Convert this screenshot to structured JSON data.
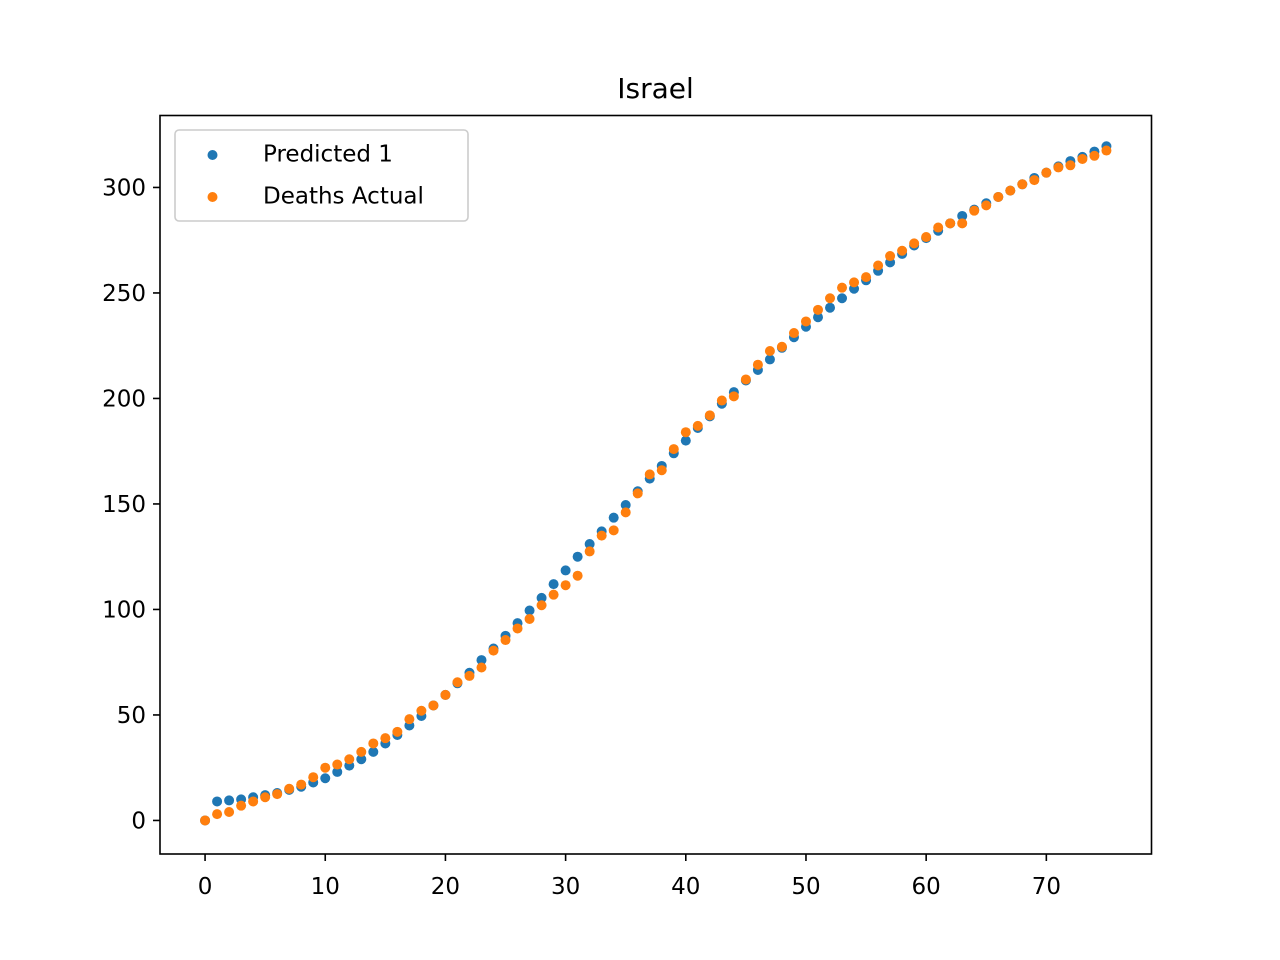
{
  "chart_data": {
    "type": "scatter",
    "title": "Israel",
    "xlabel": "",
    "ylabel": "",
    "xlim": [
      -3.75,
      78.75
    ],
    "ylim": [
      -15.9,
      334.1
    ],
    "xticks": [
      0,
      10,
      20,
      30,
      40,
      50,
      60,
      70
    ],
    "yticks": [
      0,
      50,
      100,
      150,
      200,
      250,
      300
    ],
    "grid": false,
    "legend_position": "upper-left",
    "series": [
      {
        "name": "Predicted 1",
        "color": "#1f77b4",
        "x": [
          0,
          1,
          2,
          3,
          4,
          5,
          6,
          7,
          8,
          9,
          10,
          11,
          12,
          13,
          14,
          15,
          16,
          17,
          18,
          19,
          20,
          21,
          22,
          23,
          24,
          25,
          26,
          27,
          28,
          29,
          30,
          31,
          32,
          33,
          34,
          35,
          36,
          37,
          38,
          39,
          40,
          41,
          42,
          43,
          44,
          45,
          46,
          47,
          48,
          49,
          50,
          51,
          52,
          53,
          54,
          55,
          56,
          57,
          58,
          59,
          60,
          61,
          62,
          63,
          64,
          65,
          66,
          67,
          68,
          69,
          70,
          71,
          72,
          73,
          74,
          75
        ],
        "y": [
          0,
          9,
          9.5,
          10,
          11,
          12,
          13,
          14.5,
          16,
          18,
          20,
          23,
          26,
          29,
          32.5,
          36.5,
          40.5,
          45,
          49.5,
          54.5,
          59.5,
          65,
          70,
          76,
          81.5,
          87.5,
          93.5,
          99.5,
          105.5,
          112,
          118.5,
          125,
          131,
          137,
          143.5,
          149.5,
          156,
          162,
          168,
          174,
          180,
          186,
          191.5,
          197.5,
          203,
          208.5,
          213.5,
          218.5,
          224,
          229,
          234,
          238.5,
          243,
          247.5,
          252,
          256,
          260.5,
          264.5,
          268.5,
          272.5,
          276,
          279.5,
          283,
          286.5,
          289.5,
          292.5,
          295.5,
          298.5,
          301.5,
          304.5,
          307,
          310,
          312.5,
          314.5,
          317,
          319.5
        ]
      },
      {
        "name": "Deaths Actual",
        "color": "#ff7f0e",
        "x": [
          0,
          1,
          2,
          3,
          4,
          5,
          6,
          7,
          8,
          9,
          10,
          11,
          12,
          13,
          14,
          15,
          16,
          17,
          18,
          19,
          20,
          21,
          22,
          23,
          24,
          25,
          26,
          27,
          28,
          29,
          30,
          31,
          32,
          33,
          34,
          35,
          36,
          37,
          38,
          39,
          40,
          41,
          42,
          43,
          44,
          45,
          46,
          47,
          48,
          49,
          50,
          51,
          52,
          53,
          54,
          55,
          56,
          57,
          58,
          59,
          60,
          61,
          62,
          63,
          64,
          65,
          66,
          67,
          68,
          69,
          70,
          71,
          72,
          73,
          74,
          75
        ],
        "y": [
          0,
          3,
          4,
          7,
          9,
          11,
          12.5,
          15,
          17,
          20.5,
          25,
          26.5,
          29,
          32.5,
          36.5,
          39,
          42,
          48,
          52,
          54.5,
          59.5,
          65.5,
          68.5,
          72.5,
          80.5,
          85.5,
          91,
          95.5,
          102,
          107,
          111.5,
          116,
          127.5,
          135,
          137.5,
          146,
          155,
          164,
          166,
          176,
          184,
          187,
          192,
          199,
          201,
          209,
          216,
          222.5,
          224.5,
          231,
          236.5,
          242,
          247.5,
          252.5,
          255,
          257.5,
          263,
          267.5,
          270,
          273.5,
          276.5,
          281,
          283,
          283,
          289,
          291.5,
          295.5,
          298.5,
          301.5,
          303.5,
          307,
          309.5,
          310.5,
          313.5,
          315,
          317.5
        ]
      }
    ]
  }
}
